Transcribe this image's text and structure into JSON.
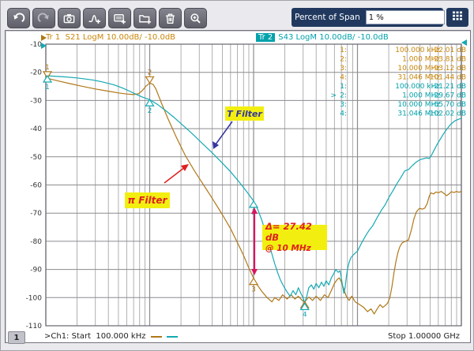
{
  "colors": {
    "orange": "#b07818",
    "teal": "#15a9b2",
    "orange_header": "#c8860a",
    "teal_header": "#00a2ac",
    "yellow": "#f2ef10",
    "red": "#e02020",
    "navy_text": "#3434a0",
    "navy_panel": "#21395f",
    "delta_arrow": "#d81560",
    "grid": "#9d9da1"
  },
  "toolbar": {
    "icons": [
      "undo-icon",
      "redo-icon",
      "camera-icon",
      "peak-marker-add-icon",
      "add-window-icon",
      "add-folder-icon",
      "delete-icon",
      "zoom-icon"
    ],
    "percent_label": "Percent of Span",
    "percent_value": "1 %",
    "keypad_icon": "keypad-icon"
  },
  "traces": {
    "tr1": {
      "name": "Tr 1",
      "desc": "S21 LogM 10.00dB/  -10.0dB"
    },
    "tr2": {
      "name": "Tr 2",
      "desc": "S43 LogM 10.00dB/  -10.0dB"
    }
  },
  "marker_table": {
    "tr1_rows": [
      {
        "sel": "",
        "n": "1:",
        "freq": "100.000 kHz",
        "val": "-22.01 dB"
      },
      {
        "sel": "",
        "n": "2:",
        "freq": "1.000 MHz",
        "val": "-23.81 dB"
      },
      {
        "sel": "",
        "n": "3:",
        "freq": "10.000 MHz",
        "val": "-93.12 dB"
      },
      {
        "sel": "",
        "n": "4:",
        "freq": "31.046 MHz",
        "val": "-101.44 dB"
      }
    ],
    "tr2_rows": [
      {
        "sel": "",
        "n": "1:",
        "freq": "100.000 kHz",
        "val": "-21.21 dB"
      },
      {
        "sel": ">",
        "n": "2:",
        "freq": "1.000 MHz",
        "val": "-29.67 dB"
      },
      {
        "sel": "",
        "n": "3:",
        "freq": "10.000 MHz",
        "val": "-65.70 dB"
      },
      {
        "sel": "",
        "n": "4:",
        "freq": "31.046 MHz",
        "val": "-102.02 dB"
      }
    ]
  },
  "annotations": {
    "t_filter": "T Filter",
    "pi_filter": "π Filter",
    "delta_line1": "Δ= 27.42 dB",
    "delta_line2": "@ 10 MHz"
  },
  "status": {
    "channel": "1",
    "start_text": ">Ch1: Start  100.000 kHz",
    "stop_text": "Stop 1.00000 GHz"
  },
  "chart_data": {
    "type": "line",
    "x_scale": "log",
    "x_unit": "MHz",
    "xlim": [
      0.1,
      1000
    ],
    "ylim": [
      -110,
      -10
    ],
    "ylabel": "dB",
    "y_ticks": [
      "-10",
      "-20",
      "-30",
      "-40",
      "-50",
      "-60",
      "-70",
      "-80",
      "-90",
      "-100",
      "-110"
    ],
    "grid": true,
    "series": [
      {
        "name": "pi-filter S21",
        "color_key": "orange",
        "points": [
          [
            0.1,
            -22.0
          ],
          [
            0.13,
            -23.0
          ],
          [
            0.17,
            -24.0
          ],
          [
            0.22,
            -24.9
          ],
          [
            0.3,
            -25.9
          ],
          [
            0.4,
            -26.7
          ],
          [
            0.5,
            -27.3
          ],
          [
            0.6,
            -27.7
          ],
          [
            0.7,
            -27.9
          ],
          [
            0.78,
            -27.6
          ],
          [
            0.85,
            -26.5
          ],
          [
            0.92,
            -24.9
          ],
          [
            1.0,
            -23.8
          ],
          [
            1.08,
            -24.3
          ],
          [
            1.15,
            -26.0
          ],
          [
            1.3,
            -31.0
          ],
          [
            1.5,
            -36.5
          ],
          [
            1.8,
            -43.0
          ],
          [
            2.2,
            -49.5
          ],
          [
            2.7,
            -55.0
          ],
          [
            3.3,
            -60.0
          ],
          [
            4.0,
            -64.8
          ],
          [
            5.0,
            -70.5
          ],
          [
            6.0,
            -75.5
          ],
          [
            7.0,
            -80.5
          ],
          [
            8.0,
            -85.0
          ],
          [
            9.0,
            -89.5
          ],
          [
            10.0,
            -93.1
          ],
          [
            11.0,
            -95.8
          ],
          [
            12.0,
            -97.8
          ],
          [
            13.5,
            -100.0
          ],
          [
            15.0,
            -101.5
          ],
          [
            16.0,
            -100.0
          ],
          [
            17.5,
            -101.0
          ],
          [
            19.0,
            -99.0
          ],
          [
            21.0,
            -100.5
          ],
          [
            23.0,
            -99.0
          ],
          [
            25.0,
            -100.5
          ],
          [
            27.0,
            -99.5
          ],
          [
            29.0,
            -100.8
          ],
          [
            31.0,
            -101.5
          ],
          [
            34.0,
            -99.8
          ],
          [
            37.0,
            -101.0
          ],
          [
            40.0,
            -99.5
          ],
          [
            44.0,
            -101.0
          ],
          [
            48.0,
            -99.0
          ],
          [
            52.0,
            -100.0
          ],
          [
            56.0,
            -97.5
          ],
          [
            60.0,
            -95.0
          ],
          [
            64.0,
            -93.5
          ],
          [
            67.0,
            -93.0
          ],
          [
            70.0,
            -94.5
          ],
          [
            74.0,
            -97.0
          ],
          [
            78.0,
            -99.5
          ],
          [
            83.0,
            -101.0
          ],
          [
            88.0,
            -99.5
          ],
          [
            95.0,
            -101.5
          ],
          [
            105,
            -102.5
          ],
          [
            115,
            -103.5
          ],
          [
            125,
            -105.0
          ],
          [
            135,
            -104.0
          ],
          [
            145,
            -105.8
          ],
          [
            155,
            -104.0
          ],
          [
            165,
            -102.5
          ],
          [
            175,
            -103.5
          ],
          [
            185,
            -102.8
          ],
          [
            195,
            -102.0
          ],
          [
            205,
            -100.0
          ],
          [
            215,
            -96.0
          ],
          [
            225,
            -91.0
          ],
          [
            235,
            -87.0
          ],
          [
            245,
            -84.0
          ],
          [
            255,
            -82.0
          ],
          [
            270,
            -80.5
          ],
          [
            290,
            -80.0
          ],
          [
            310,
            -79.5
          ],
          [
            330,
            -76.0
          ],
          [
            350,
            -72.0
          ],
          [
            370,
            -69.5
          ],
          [
            395,
            -68.3
          ],
          [
            420,
            -68.6
          ],
          [
            445,
            -68.2
          ],
          [
            470,
            -66.5
          ],
          [
            490,
            -64.0
          ],
          [
            510,
            -62.8
          ],
          [
            540,
            -63.2
          ],
          [
            570,
            -62.5
          ],
          [
            600,
            -62.8
          ],
          [
            640,
            -62.3
          ],
          [
            680,
            -63.0
          ],
          [
            720,
            -63.8
          ],
          [
            760,
            -63.2
          ],
          [
            800,
            -62.4
          ],
          [
            850,
            -62.7
          ],
          [
            900,
            -62.3
          ],
          [
            950,
            -62.6
          ],
          [
            1000,
            -62.2
          ]
        ],
        "markers": [
          {
            "n": "1",
            "f": 0.1,
            "db": -22.01,
            "shape": "down",
            "label": "above"
          },
          {
            "n": "2",
            "f": 1.0,
            "db": -23.81,
            "shape": "down",
            "label": "above"
          },
          {
            "n": "3",
            "f": 10.0,
            "db": -93.12,
            "shape": "up",
            "label": "below"
          },
          {
            "n": "4",
            "f": 31.046,
            "db": -101.44,
            "shape": "up",
            "label": "none"
          }
        ]
      },
      {
        "name": "T-filter S43",
        "color_key": "teal",
        "points": [
          [
            0.1,
            -21.2
          ],
          [
            0.15,
            -21.6
          ],
          [
            0.2,
            -22.0
          ],
          [
            0.28,
            -22.7
          ],
          [
            0.35,
            -23.4
          ],
          [
            0.45,
            -24.4
          ],
          [
            0.55,
            -25.6
          ],
          [
            0.65,
            -26.8
          ],
          [
            0.75,
            -27.9
          ],
          [
            0.85,
            -28.8
          ],
          [
            1.0,
            -29.7
          ],
          [
            1.2,
            -31.5
          ],
          [
            1.45,
            -33.8
          ],
          [
            1.75,
            -36.3
          ],
          [
            2.1,
            -38.9
          ],
          [
            2.6,
            -42.0
          ],
          [
            3.2,
            -45.2
          ],
          [
            4.0,
            -48.6
          ],
          [
            5.0,
            -52.2
          ],
          [
            6.0,
            -55.3
          ],
          [
            7.0,
            -58.2
          ],
          [
            8.0,
            -60.9
          ],
          [
            9.0,
            -63.4
          ],
          [
            10.0,
            -65.7
          ],
          [
            11.0,
            -68.8
          ],
          [
            12.0,
            -72.5
          ],
          [
            13.0,
            -76.5
          ],
          [
            14.0,
            -80.5
          ],
          [
            15.0,
            -84.5
          ],
          [
            16.0,
            -88.0
          ],
          [
            17.0,
            -91.0
          ],
          [
            18.0,
            -93.5
          ],
          [
            19.5,
            -96.0
          ],
          [
            21.0,
            -98.0
          ],
          [
            22.5,
            -99.5
          ],
          [
            24.0,
            -97.5
          ],
          [
            25.5,
            -99.0
          ],
          [
            27.0,
            -96.5
          ],
          [
            28.5,
            -98.5
          ],
          [
            30.0,
            -100.0
          ],
          [
            31.0,
            -102.0
          ],
          [
            32.5,
            -99.5
          ],
          [
            34.0,
            -96.5
          ],
          [
            36.0,
            -95.5
          ],
          [
            38.0,
            -97.0
          ],
          [
            40.0,
            -95.0
          ],
          [
            42.5,
            -96.5
          ],
          [
            45.0,
            -94.5
          ],
          [
            47.5,
            -96.0
          ],
          [
            50.0,
            -94.0
          ],
          [
            53.0,
            -95.5
          ],
          [
            56.0,
            -93.0
          ],
          [
            59.0,
            -91.5
          ],
          [
            62.0,
            -90.0
          ],
          [
            65.0,
            -91.0
          ],
          [
            68.0,
            -90.5
          ],
          [
            70.0,
            -93.0
          ],
          [
            72.0,
            -96.0
          ],
          [
            74.0,
            -98.5
          ],
          [
            76.0,
            -96.5
          ],
          [
            78.0,
            -93.0
          ],
          [
            80.0,
            -90.0
          ],
          [
            83.0,
            -87.5
          ],
          [
            86.0,
            -86.0
          ],
          [
            90.0,
            -85.0
          ],
          [
            95.0,
            -84.2
          ],
          [
            100,
            -83.5
          ],
          [
            110,
            -80.5
          ],
          [
            120,
            -78.0
          ],
          [
            130,
            -76.0
          ],
          [
            140,
            -74.5
          ],
          [
            155,
            -71.5
          ],
          [
            170,
            -69.0
          ],
          [
            185,
            -67.0
          ],
          [
            200,
            -64.5
          ],
          [
            220,
            -62.0
          ],
          [
            240,
            -59.5
          ],
          [
            260,
            -57.5
          ],
          [
            285,
            -55.0
          ],
          [
            310,
            -54.5
          ],
          [
            340,
            -53.0
          ],
          [
            370,
            -51.8
          ],
          [
            400,
            -51.0
          ],
          [
            430,
            -50.7
          ],
          [
            460,
            -50.4
          ],
          [
            490,
            -50.6
          ],
          [
            510,
            -49.8
          ],
          [
            540,
            -48.0
          ],
          [
            580,
            -45.8
          ],
          [
            620,
            -44.0
          ],
          [
            670,
            -42.0
          ],
          [
            720,
            -40.3
          ],
          [
            770,
            -38.9
          ],
          [
            820,
            -37.9
          ],
          [
            870,
            -37.2
          ],
          [
            920,
            -36.8
          ],
          [
            1000,
            -36.3
          ]
        ],
        "markers": [
          {
            "n": "1",
            "f": 0.1,
            "db": -21.21,
            "shape": "up",
            "label": "below"
          },
          {
            "n": "2",
            "f": 1.0,
            "db": -29.67,
            "shape": "up",
            "label": "below"
          },
          {
            "n": "3",
            "f": 10.0,
            "db": -65.7,
            "shape": "up",
            "label": "below"
          },
          {
            "n": "4",
            "f": 31.046,
            "db": -102.02,
            "shape": "up",
            "label": "below"
          }
        ]
      }
    ],
    "delta_annotation": {
      "f": 10,
      "from_db": -65.7,
      "to_db": -93.12,
      "text": "Δ= 27.42 dB @ 10 MHz"
    }
  }
}
